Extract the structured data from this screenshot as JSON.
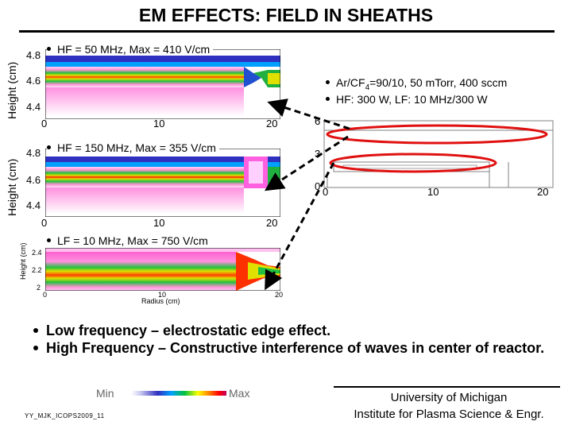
{
  "title": "EM EFFECTS: FIELD IN SHEATHS",
  "plots": [
    {
      "label": "HF = 50 MHz, Max = 410 V/cm",
      "ylabel": "Height (cm)",
      "yticks": [
        "4.8",
        "4.6",
        "4.4"
      ],
      "xticks": [
        "0",
        "10",
        "20"
      ]
    },
    {
      "label": "HF = 150 MHz, Max = 355 V/cm",
      "ylabel": "Height (cm)",
      "yticks": [
        "4.8",
        "4.6",
        "4.4"
      ],
      "xticks": [
        "0",
        "10",
        "20"
      ]
    },
    {
      "label": "LF = 10 MHz, Max = 750 V/cm",
      "ylabel": "Height (cm)",
      "xlabel": "Radius (cm)",
      "yticks": [
        "2.4",
        "2.2",
        "2"
      ],
      "xticks": [
        "0",
        "10",
        "20"
      ]
    }
  ],
  "conditions": {
    "line1_pre": "Ar/CF",
    "line1_sub": "4",
    "line1_post": "=90/10, 50 mTorr, 400 sccm",
    "line2": "HF: 300 W, LF: 10 MHz/300 W"
  },
  "reactor": {
    "yticks": [
      "6",
      "3",
      "0"
    ],
    "xticks": [
      "0",
      "10",
      "20"
    ]
  },
  "conclusions": [
    "Low frequency – electrostatic edge effect.",
    "High Frequency – Constructive interference of waves in center of reactor."
  ],
  "colorbar": {
    "min_label": "Min",
    "max_label": "Max"
  },
  "credit": {
    "line1": "University of Michigan",
    "line2": "Institute for Plasma Science & Engr."
  },
  "reference": "YY_MJK_ICOPS2009_11",
  "colors": {
    "ellipse": "#e01010",
    "arrow": "#000000"
  }
}
